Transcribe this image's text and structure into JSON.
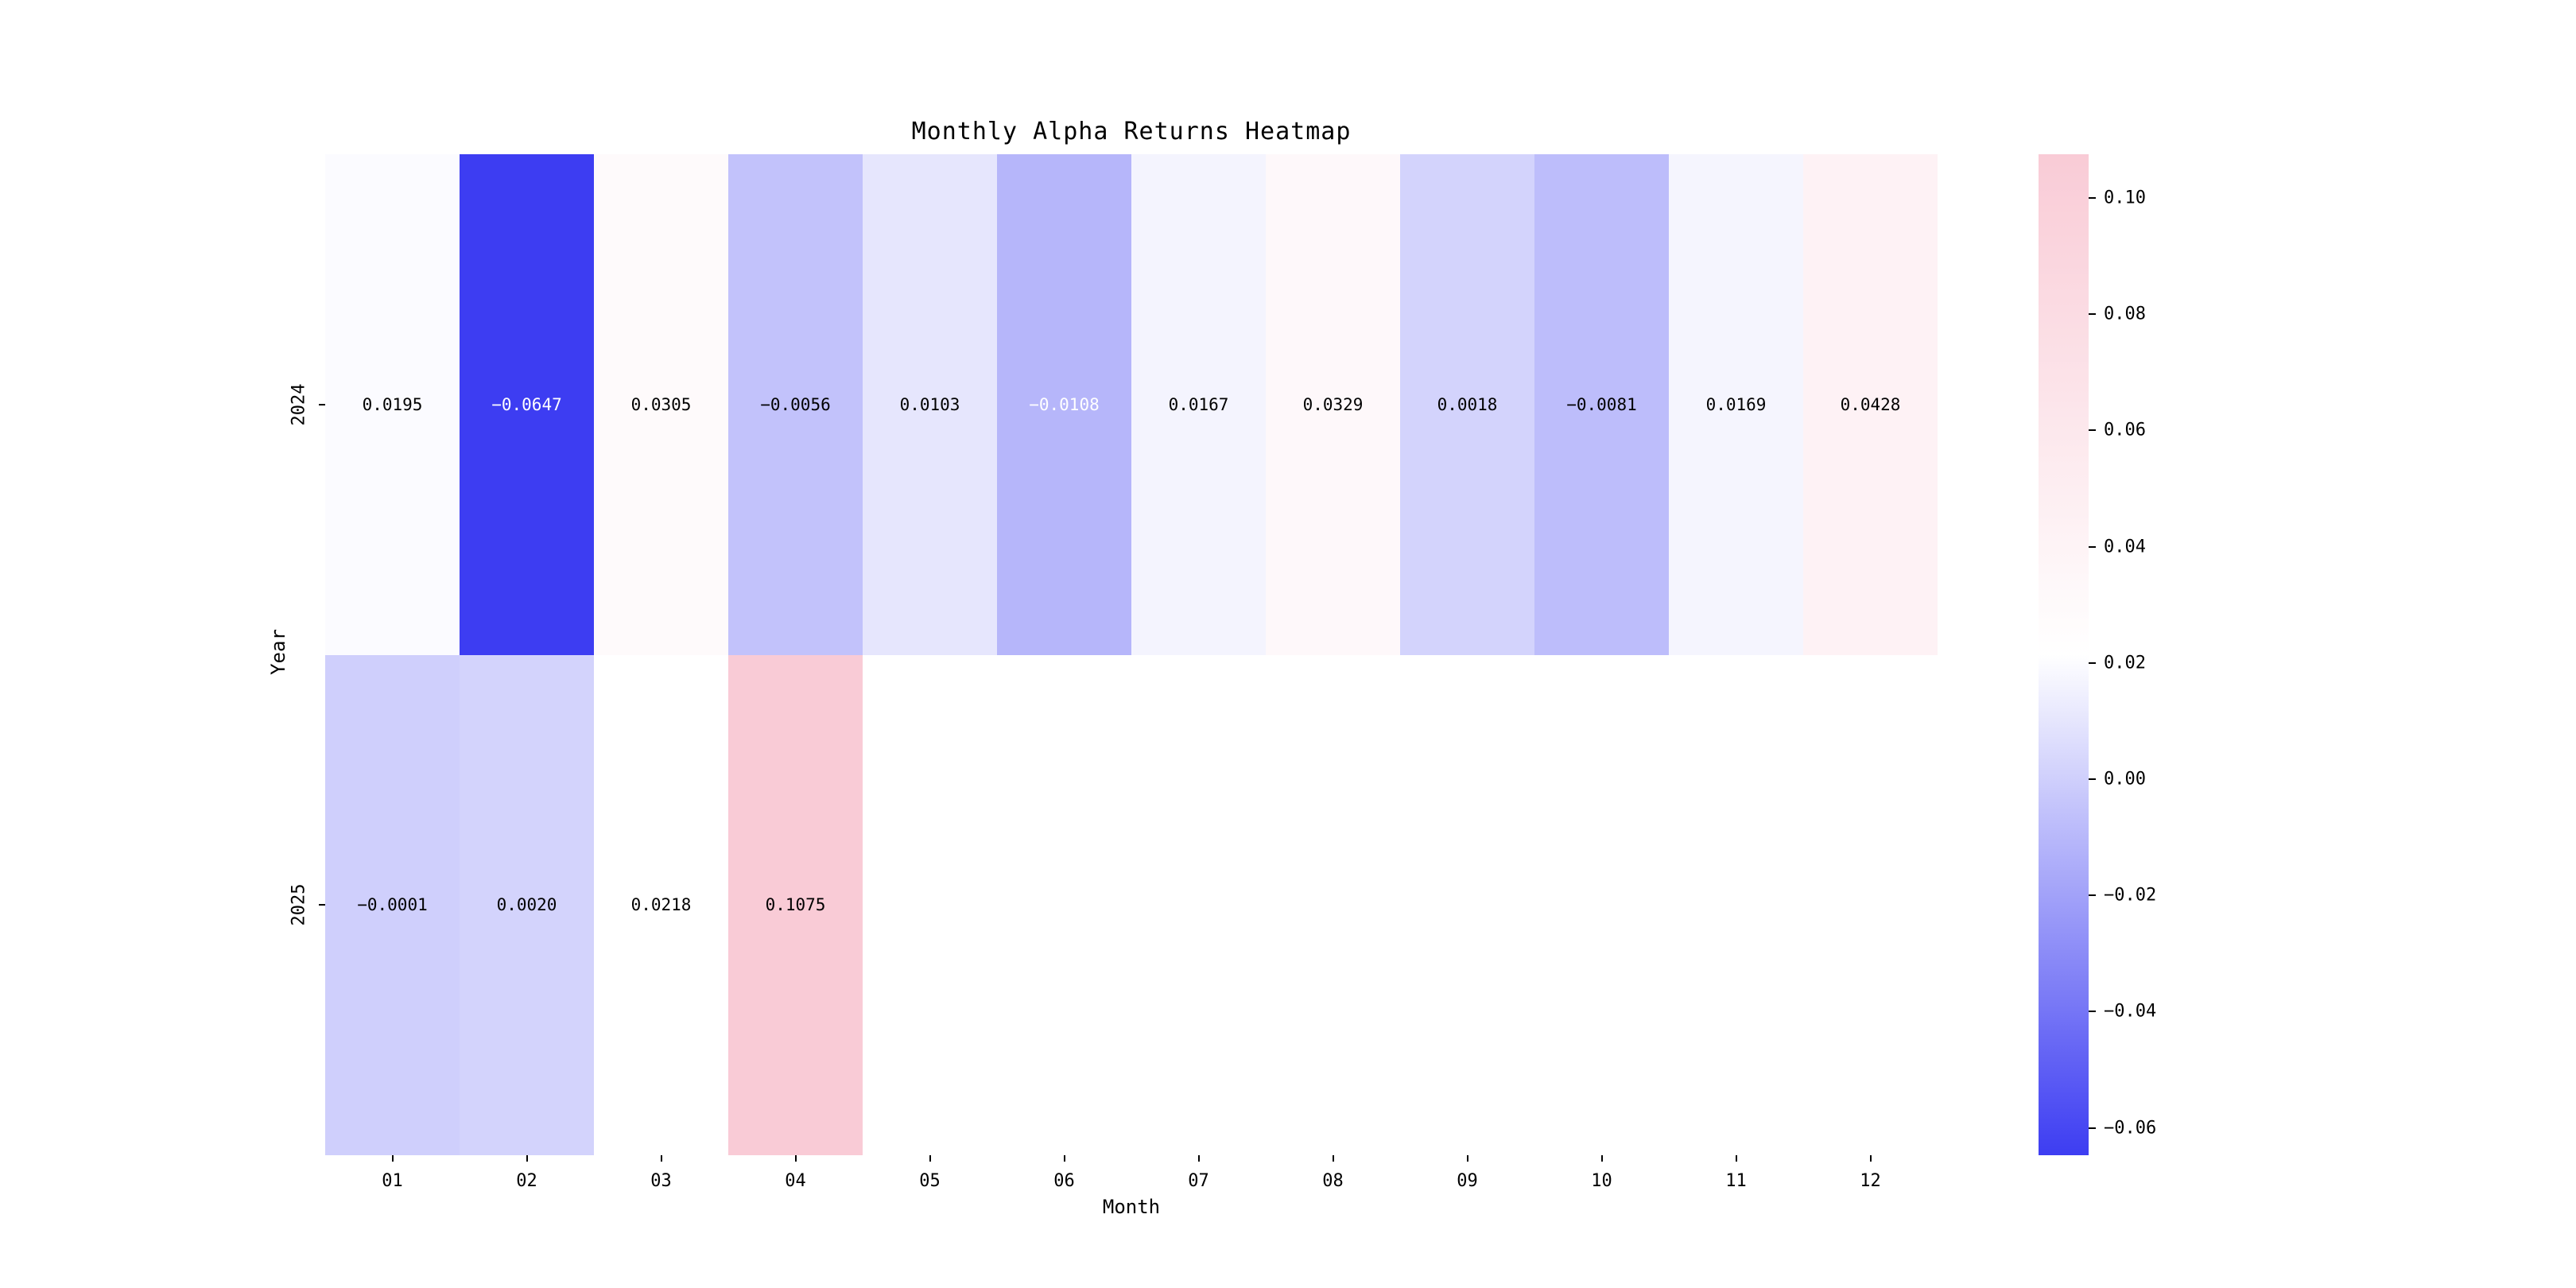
{
  "chart_data": {
    "type": "heatmap",
    "title": "Monthly Alpha Returns Heatmap",
    "xlabel": "Month",
    "ylabel": "Year",
    "rows": [
      "2024",
      "2025"
    ],
    "columns": [
      "01",
      "02",
      "03",
      "04",
      "05",
      "06",
      "07",
      "08",
      "09",
      "10",
      "11",
      "12"
    ],
    "values": [
      [
        0.0195,
        -0.0647,
        0.0305,
        -0.0056,
        0.0103,
        -0.0108,
        0.0167,
        0.0329,
        0.0018,
        -0.0081,
        0.0169,
        0.0428
      ],
      [
        -0.0001,
        0.002,
        0.0218,
        0.1075,
        null,
        null,
        null,
        null,
        null,
        null,
        null,
        null
      ]
    ],
    "vmin": -0.0647,
    "vmax": 0.1075,
    "annotation_decimals": 4,
    "white_text_cells": [
      [
        0,
        1
      ],
      [
        0,
        5
      ]
    ],
    "grid": false,
    "colorbar": {
      "position": "right",
      "ticks": [
        0.1,
        0.08,
        0.06,
        0.04,
        0.02,
        0.0,
        -0.02,
        -0.04,
        -0.06
      ],
      "tick_labels": [
        "0.10",
        "0.08",
        "0.06",
        "0.04",
        "0.02",
        "0.00",
        "−0.02",
        "−0.04",
        "−0.06"
      ]
    },
    "colors": {
      "low": "#3d3df2",
      "mid": "#ffffff",
      "high": "#f9cbd6",
      "nan": "#ffffff",
      "annotation_dark": "#000000",
      "annotation_light": "#ffffff",
      "background": "#ffffff"
    }
  }
}
